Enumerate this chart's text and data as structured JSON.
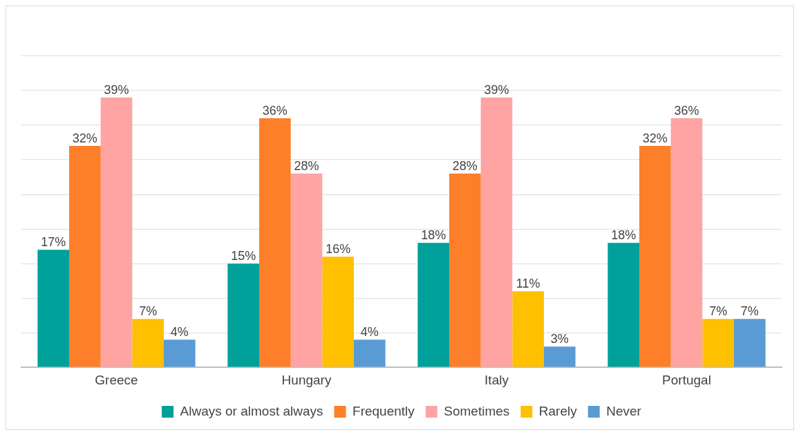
{
  "chart_data": {
    "type": "bar",
    "categories": [
      "Greece",
      "Hungary",
      "Italy",
      "Portugal"
    ],
    "series": [
      {
        "name": "Always or almost always",
        "color": "#00a19a",
        "values": [
          17,
          15,
          18,
          18
        ],
        "value_labels": [
          "17%",
          "15%",
          "18%",
          "18%"
        ]
      },
      {
        "name": "Frequently",
        "color": "#fd7f2a",
        "values": [
          32,
          36,
          28,
          32
        ],
        "value_labels": [
          "32%",
          "36%",
          "28%",
          "32%"
        ]
      },
      {
        "name": "Sometimes",
        "color": "#ffa3a3",
        "values": [
          39,
          28,
          39,
          36
        ],
        "value_labels": [
          "39%",
          "28%",
          "39%",
          "36%"
        ]
      },
      {
        "name": "Rarely",
        "color": "#ffc000",
        "values": [
          7,
          16,
          11,
          7
        ],
        "value_labels": [
          "7%",
          "16%",
          "11%",
          "7%"
        ]
      },
      {
        "name": "Never",
        "color": "#5b9bd5",
        "values": [
          4,
          4,
          3,
          7
        ],
        "value_labels": [
          "4%",
          "4%",
          "3%",
          "7%"
        ]
      }
    ],
    "tick_labels": "x",
    "grid": "y",
    "legend": "bottom"
  }
}
